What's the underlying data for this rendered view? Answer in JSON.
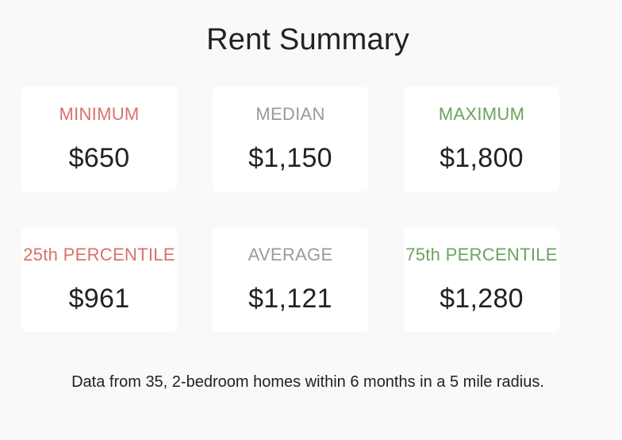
{
  "title": "Rent Summary",
  "colors": {
    "low": "#d9706c",
    "mid": "#9a9a9a",
    "high": "#6ba35e"
  },
  "stats": [
    {
      "label": "MINIMUM",
      "value": "$650",
      "tone": "low"
    },
    {
      "label": "MEDIAN",
      "value": "$1,150",
      "tone": "mid"
    },
    {
      "label": "MAXIMUM",
      "value": "$1,800",
      "tone": "high"
    },
    {
      "label": "25th PERCENTILE",
      "value": "$961",
      "tone": "low"
    },
    {
      "label": "AVERAGE",
      "value": "$1,121",
      "tone": "mid"
    },
    {
      "label": "75th PERCENTILE",
      "value": "$1,280",
      "tone": "high"
    }
  ],
  "footnote": "Data from 35, 2-bedroom homes within 6 months in a 5 mile radius."
}
